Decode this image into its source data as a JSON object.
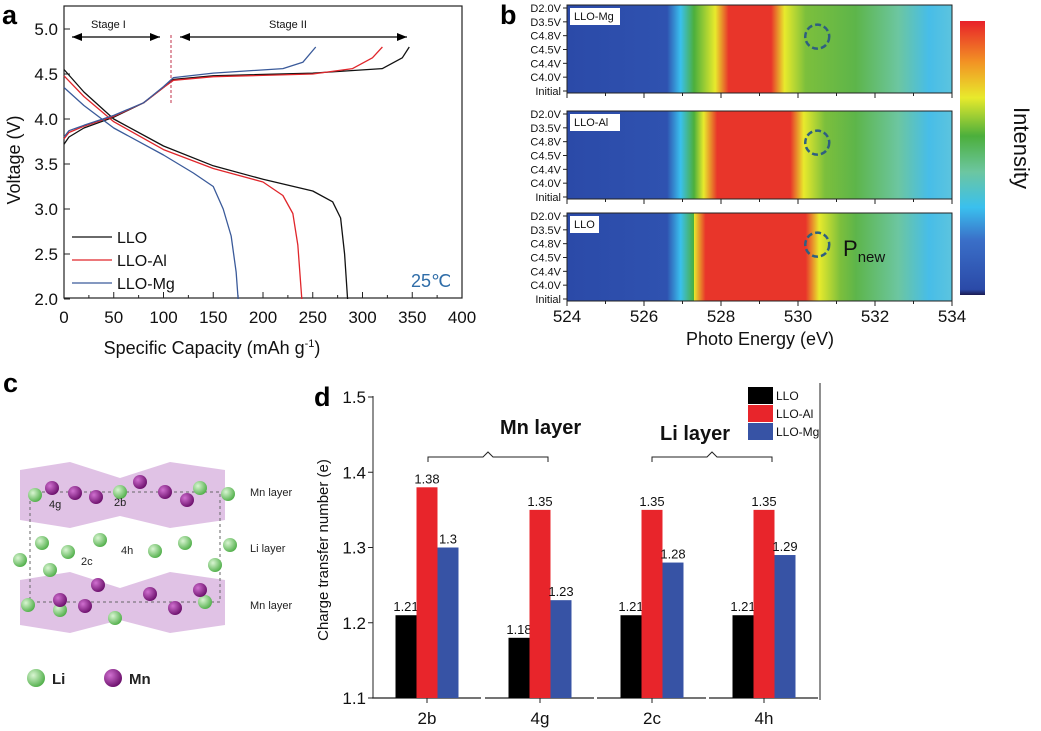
{
  "chart_data": [
    {
      "panel": "a",
      "type": "line",
      "xlabel": "Specific Capacity (mAh g",
      "xlabel_sup": "-1",
      "xlabel_end": ")",
      "ylabel": "Voltage (V)",
      "xlim": [
        0,
        400
      ],
      "ylim": [
        2.0,
        5.2
      ],
      "xticks": [
        "0",
        "50",
        "100",
        "150",
        "200",
        "250",
        "300",
        "350",
        "400"
      ],
      "yticks": [
        "2.0",
        "2.5",
        "3.0",
        "3.5",
        "4.0",
        "4.5",
        "5.0"
      ],
      "annotations": {
        "stage1": "Stage I",
        "stage2": "Stage II",
        "temperature": "25℃",
        "stage_boundary_capacity": 107
      },
      "legend": "bottom-left",
      "series": [
        {
          "name": "LLO",
          "color": "#111111",
          "charge": [
            [
              0,
              3.72
            ],
            [
              5,
              3.8
            ],
            [
              20,
              3.9
            ],
            [
              50,
              4.02
            ],
            [
              80,
              4.18
            ],
            [
              100,
              4.35
            ],
            [
              110,
              4.44
            ],
            [
              150,
              4.48
            ],
            [
              250,
              4.51
            ],
            [
              320,
              4.56
            ],
            [
              340,
              4.68
            ],
            [
              347,
              4.8
            ]
          ],
          "discharge": [
            [
              0,
              4.55
            ],
            [
              20,
              4.3
            ],
            [
              50,
              4.0
            ],
            [
              100,
              3.7
            ],
            [
              150,
              3.48
            ],
            [
              200,
              3.33
            ],
            [
              250,
              3.2
            ],
            [
              270,
              3.08
            ],
            [
              278,
              2.9
            ],
            [
              282,
              2.5
            ],
            [
              285,
              2.0
            ]
          ]
        },
        {
          "name": "LLO-Al",
          "color": "#e0262b",
          "charge": [
            [
              0,
              3.78
            ],
            [
              5,
              3.85
            ],
            [
              20,
              3.92
            ],
            [
              50,
              4.03
            ],
            [
              80,
              4.18
            ],
            [
              100,
              4.35
            ],
            [
              110,
              4.43
            ],
            [
              150,
              4.47
            ],
            [
              250,
              4.5
            ],
            [
              290,
              4.56
            ],
            [
              310,
              4.68
            ],
            [
              320,
              4.8
            ]
          ],
          "discharge": [
            [
              0,
              4.48
            ],
            [
              20,
              4.25
            ],
            [
              50,
              3.97
            ],
            [
              100,
              3.66
            ],
            [
              150,
              3.45
            ],
            [
              200,
              3.3
            ],
            [
              220,
              3.15
            ],
            [
              230,
              2.95
            ],
            [
              235,
              2.6
            ],
            [
              239,
              2.0
            ]
          ]
        },
        {
          "name": "LLO-Mg",
          "color": "#3a5a9a",
          "charge": [
            [
              0,
              3.8
            ],
            [
              5,
              3.87
            ],
            [
              20,
              3.93
            ],
            [
              50,
              4.04
            ],
            [
              80,
              4.18
            ],
            [
              100,
              4.36
            ],
            [
              110,
              4.46
            ],
            [
              150,
              4.51
            ],
            [
              220,
              4.56
            ],
            [
              240,
              4.63
            ],
            [
              253,
              4.8
            ]
          ],
          "discharge": [
            [
              0,
              4.35
            ],
            [
              20,
              4.15
            ],
            [
              50,
              3.9
            ],
            [
              100,
              3.6
            ],
            [
              130,
              3.4
            ],
            [
              150,
              3.25
            ],
            [
              160,
              3.0
            ],
            [
              168,
              2.7
            ],
            [
              173,
              2.3
            ],
            [
              175,
              2.0
            ]
          ]
        }
      ]
    },
    {
      "panel": "b",
      "type": "heatmap",
      "xlabel": "Photo Energy (eV)",
      "xlim": [
        524,
        534
      ],
      "xticks": [
        "524",
        "526",
        "528",
        "530",
        "532",
        "534"
      ],
      "rows": [
        "D2.0V",
        "D3.5V",
        "C4.8V",
        "C4.5V",
        "C4.4V",
        "C4.0V",
        "Initial"
      ],
      "colorbar_label": "Intensity",
      "annotation": "P",
      "annotation_sub": "new",
      "circle_energy_eV": 530.5,
      "panels": [
        {
          "name": "LLO-Mg",
          "peak_eV": [
            528.2,
            529.3
          ]
        },
        {
          "name": "LLO-Al",
          "peak_eV": [
            527.9,
            529.8
          ]
        },
        {
          "name": "LLO",
          "peak_eV": [
            527.6,
            530.2
          ]
        }
      ]
    },
    {
      "panel": "d",
      "type": "bar",
      "ylabel": "Charge transfer number (e)",
      "ylim": [
        1.1,
        1.5
      ],
      "yticks": [
        "1.1",
        "1.2",
        "1.3",
        "1.4",
        "1.5"
      ],
      "categories": [
        "2b",
        "4g",
        "2c",
        "4h"
      ],
      "groups": [
        {
          "label": "Mn layer"
        },
        {
          "label": "Li layer"
        }
      ],
      "legend": "top-right",
      "series": [
        {
          "name": "LLO",
          "color": "#000000",
          "values": [
            1.21,
            1.18,
            1.21,
            1.21
          ],
          "labels": [
            "1.21",
            "1.18",
            "1.21",
            "1.21"
          ]
        },
        {
          "name": "LLO-Al",
          "color": "#e8252b",
          "values": [
            1.38,
            1.35,
            1.35,
            1.35
          ],
          "labels": [
            "1.38",
            "1.35",
            "1.35",
            "1.35"
          ]
        },
        {
          "name": "LLO-Mg",
          "color": "#3753a5",
          "values": [
            1.3,
            1.23,
            1.28,
            1.29
          ],
          "labels": [
            "1.3",
            "1.23",
            "1.28",
            "1.29"
          ]
        }
      ]
    }
  ],
  "panel_labels": {
    "a": "a",
    "b": "b",
    "c": "c",
    "d": "d"
  },
  "panel_c": {
    "layers": [
      "Mn layer",
      "Li layer",
      "Mn layer"
    ],
    "sites": [
      "4g",
      "2b",
      "2c",
      "4h"
    ],
    "legend": [
      {
        "name": "Li",
        "color": "#7fd37a"
      },
      {
        "name": "Mn",
        "color": "#8a1a8a"
      }
    ]
  }
}
